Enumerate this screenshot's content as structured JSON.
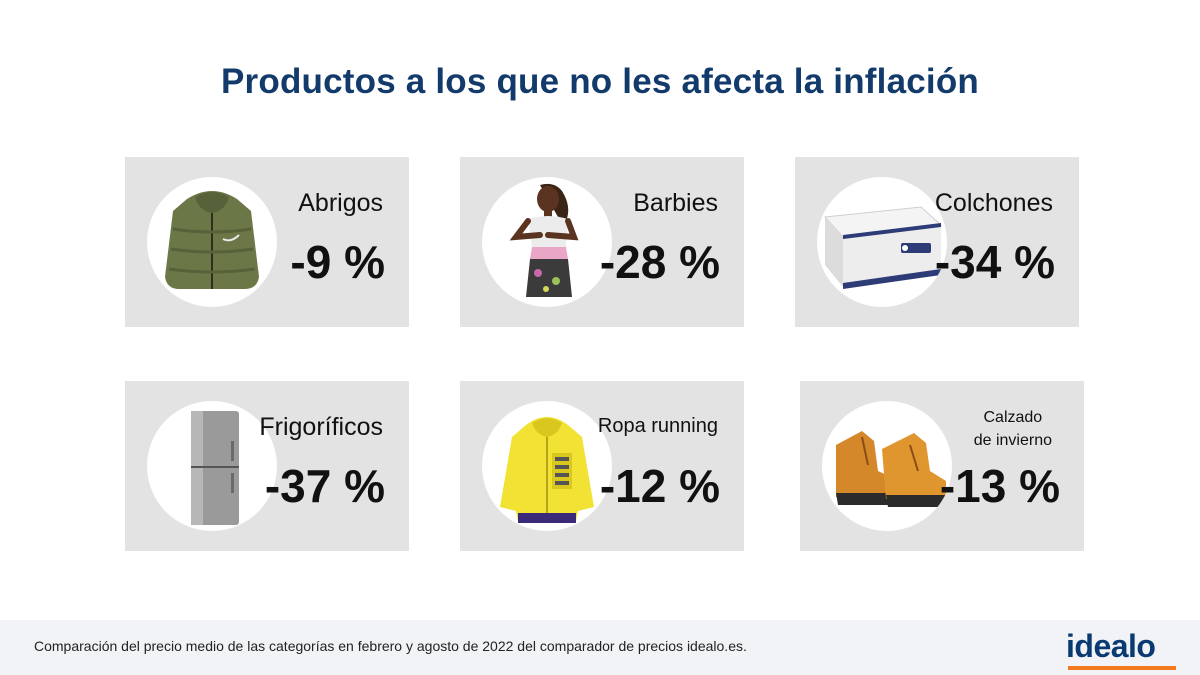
{
  "title": "Productos a los que no les afecta la inflación",
  "products": [
    {
      "category": "Abrigos",
      "change": "-9 %",
      "icon": "jacket-icon"
    },
    {
      "category": "Barbies",
      "change": "-28 %",
      "icon": "doll-icon"
    },
    {
      "category": "Colchones",
      "change": "-34 %",
      "icon": "mattress-icon"
    },
    {
      "category": "Frigoríficos",
      "change": "-37 %",
      "icon": "fridge-icon"
    },
    {
      "category": "Ropa running",
      "change": "-12 %",
      "icon": "running-jacket-icon"
    },
    {
      "category_line1": "Calzado",
      "category_line2": "de invierno",
      "change": "-13 %",
      "icon": "boots-icon"
    }
  ],
  "footer": {
    "note": "Comparación del precio medio de las categorías en febrero y agosto de 2022 del comparador de precios idealo.es.",
    "logo": "idealo"
  },
  "colors": {
    "title": "#123a6b",
    "card_bg": "#e3e3e3",
    "logo_text": "#0a3a72",
    "logo_accent": "#f47a20"
  }
}
